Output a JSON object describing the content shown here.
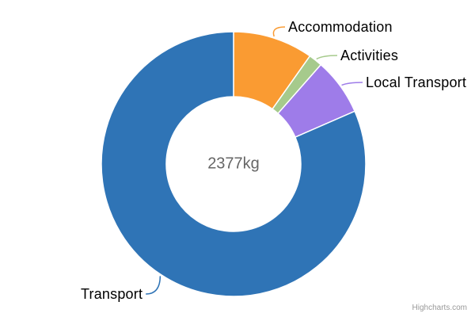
{
  "chart_data": {
    "type": "pie",
    "subtype": "donut",
    "title": "",
    "center_label": "2377kg",
    "total_kg": 2377,
    "unit": "kg",
    "start_angle_deg": 0,
    "direction": "clockwise",
    "inner_radius_pct": 50,
    "legend": "none",
    "label_color": "#000000",
    "center_label_color": "#666666",
    "border_color": "#ffffff",
    "points": [
      {
        "name": "Accommodation",
        "value": 233,
        "color": "#fa9b32"
      },
      {
        "name": "Activities",
        "value": 40,
        "color": "#a6ca8c"
      },
      {
        "name": "Local Transport",
        "value": 166,
        "color": "#9e7ce9"
      },
      {
        "name": "Transport",
        "value": 1938,
        "color": "#2f74b6"
      }
    ]
  },
  "credit": {
    "text": "Highcharts.com",
    "color": "#999999"
  }
}
